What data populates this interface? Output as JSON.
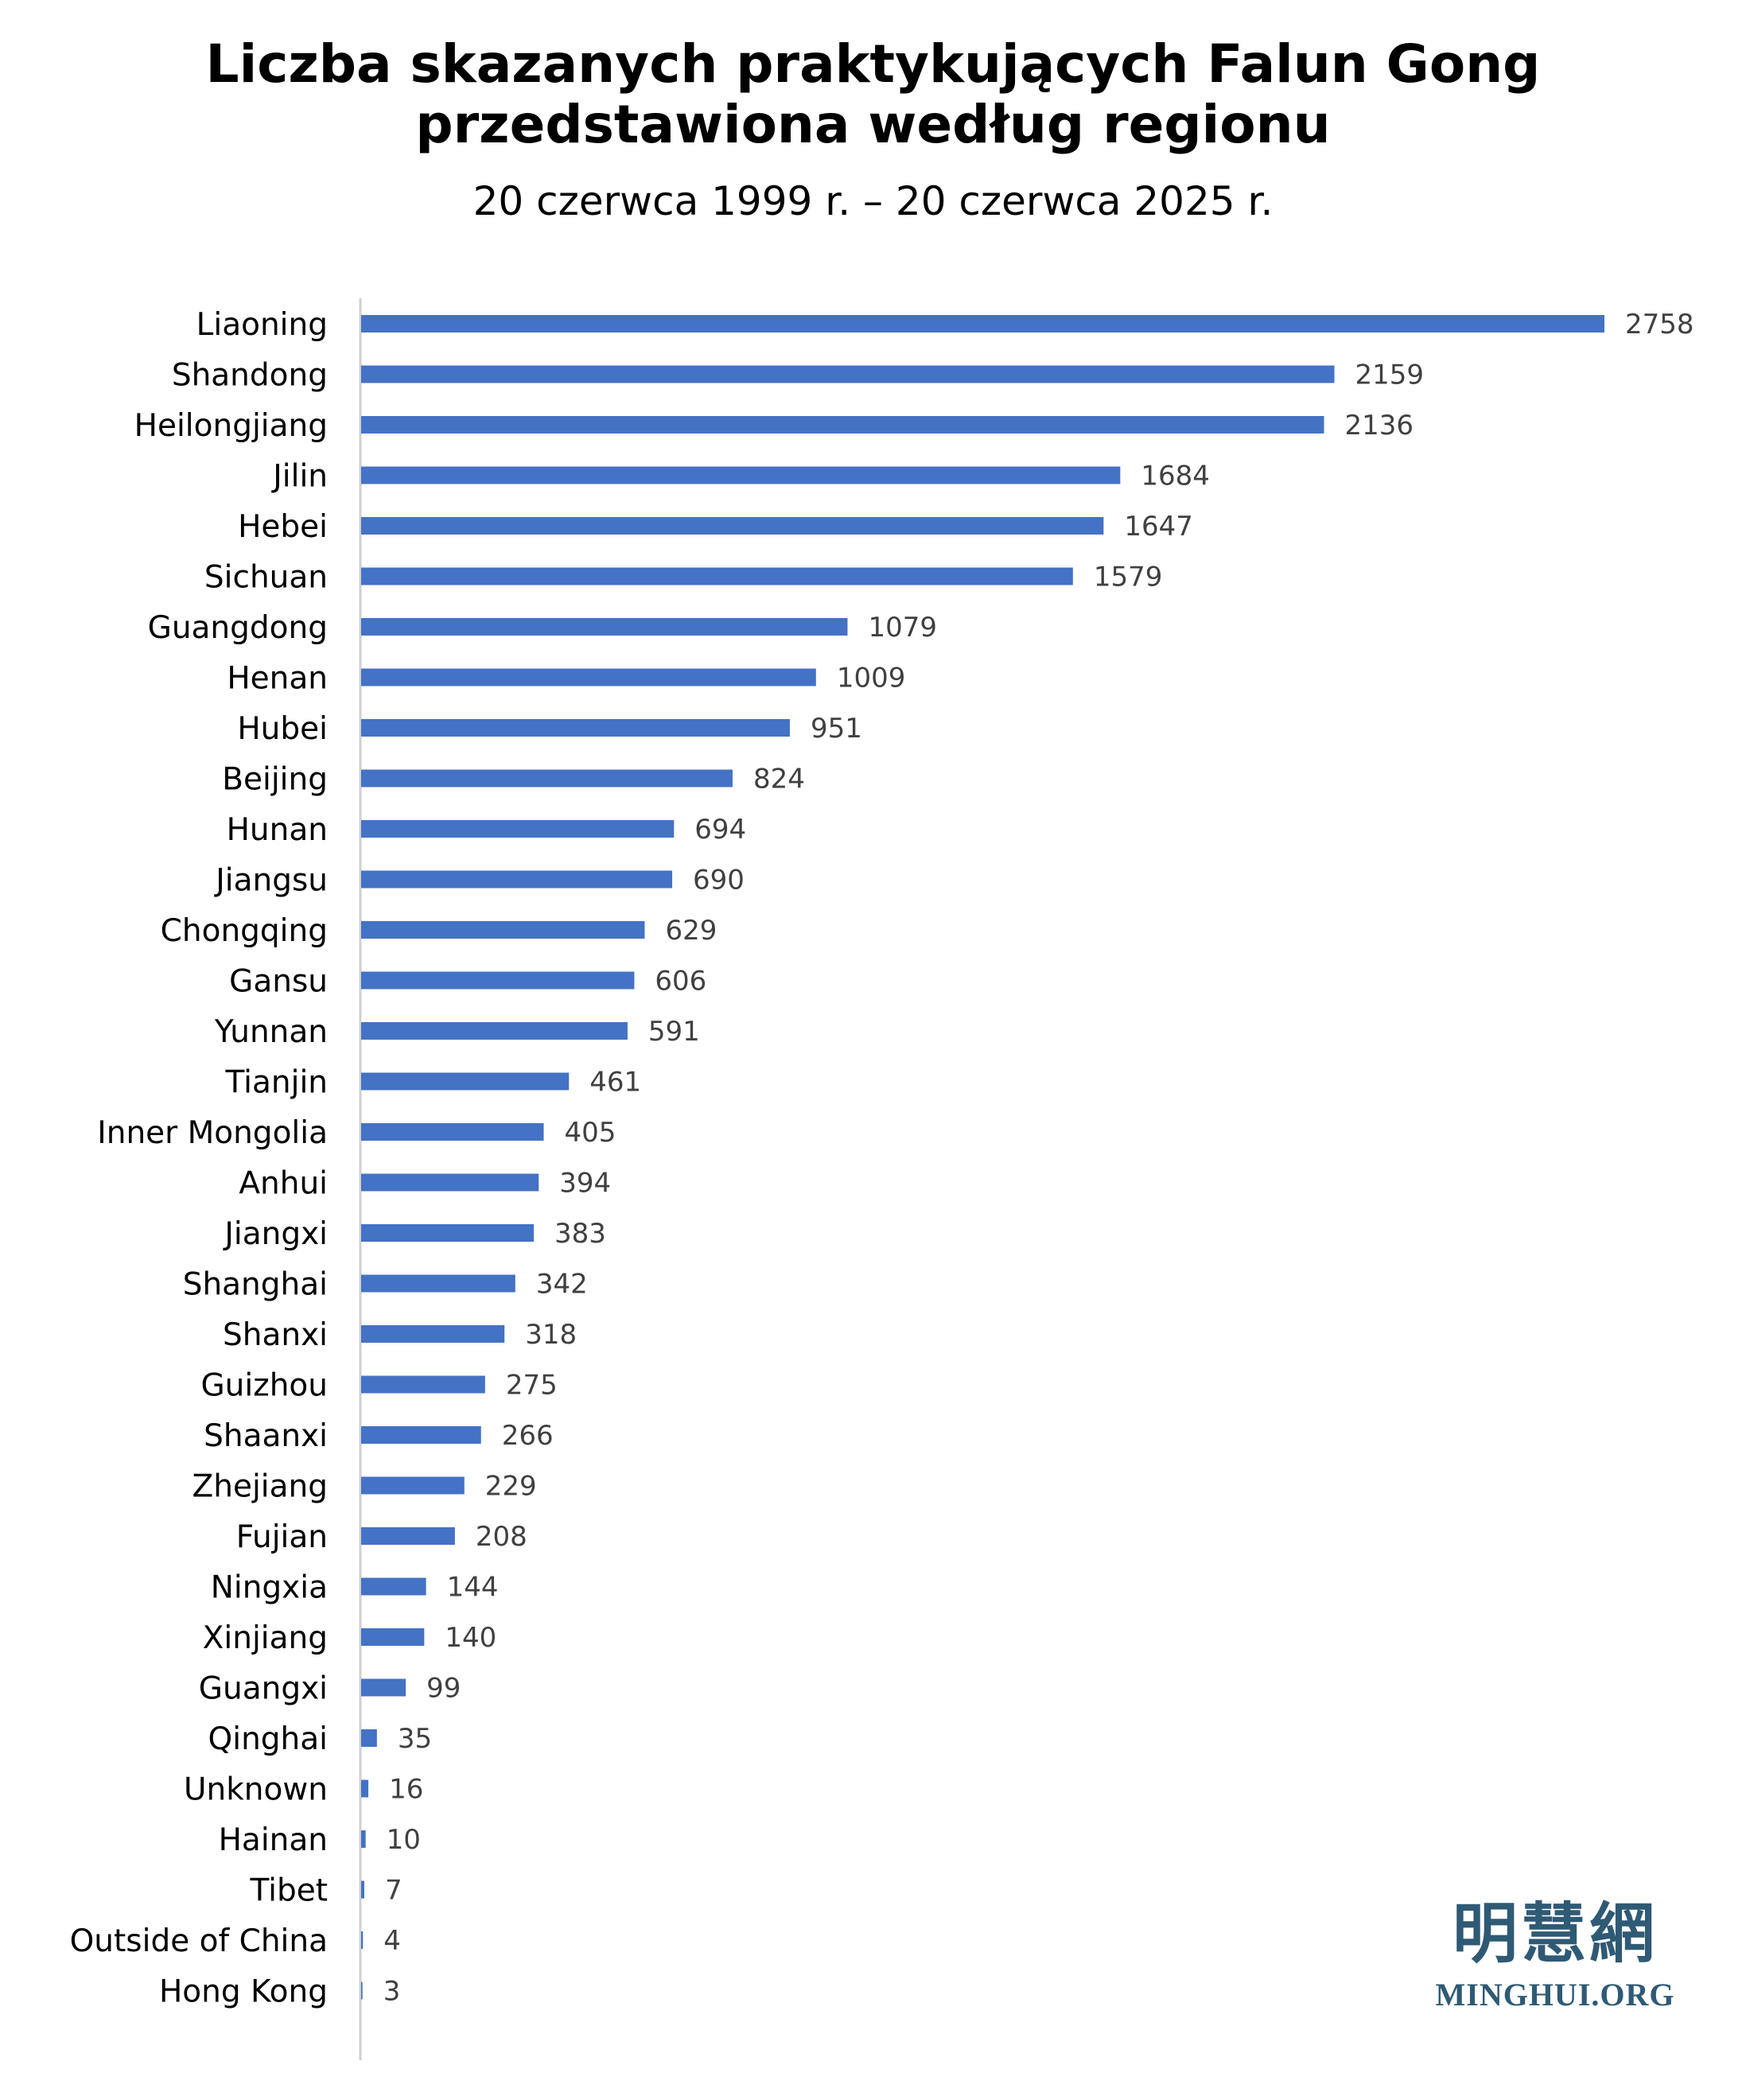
{
  "chart_data": {
    "type": "bar",
    "orientation": "horizontal",
    "title_lines": [
      "Liczba skazanych praktykujących Falun Gong",
      "przedstawiona według regionu"
    ],
    "subtitle": "20 czerwca 1999 r. – 20 czerwca 2025 r.",
    "categories": [
      "Liaoning",
      "Shandong",
      "Heilongjiang",
      "Jilin",
      "Hebei",
      "Sichuan",
      "Guangdong",
      "Henan",
      "Hubei",
      "Beijing",
      "Hunan",
      "Jiangsu",
      "Chongqing",
      "Gansu",
      "Yunnan",
      "Tianjin",
      "Inner Mongolia",
      "Anhui",
      "Jiangxi",
      "Shanghai",
      "Shanxi",
      "Guizhou",
      "Shaanxi",
      "Zhejiang",
      "Fujian",
      "Ningxia",
      "Xinjiang",
      "Guangxi",
      "Qinghai",
      "Unknown",
      "Hainan",
      "Tibet",
      "Outside of China",
      "Hong Kong"
    ],
    "values": [
      2758,
      2159,
      2136,
      1684,
      1647,
      1579,
      1079,
      1009,
      951,
      824,
      694,
      690,
      629,
      606,
      591,
      461,
      405,
      394,
      383,
      342,
      318,
      275,
      266,
      229,
      208,
      144,
      140,
      99,
      35,
      16,
      10,
      7,
      4,
      3
    ],
    "xlim": [
      0,
      2758
    ],
    "data_labels": true,
    "legend": "none",
    "grid": false,
    "bar_color": "#4472c4"
  },
  "logo": {
    "cjk": "明慧網",
    "text": "MINGHUI.ORG"
  }
}
